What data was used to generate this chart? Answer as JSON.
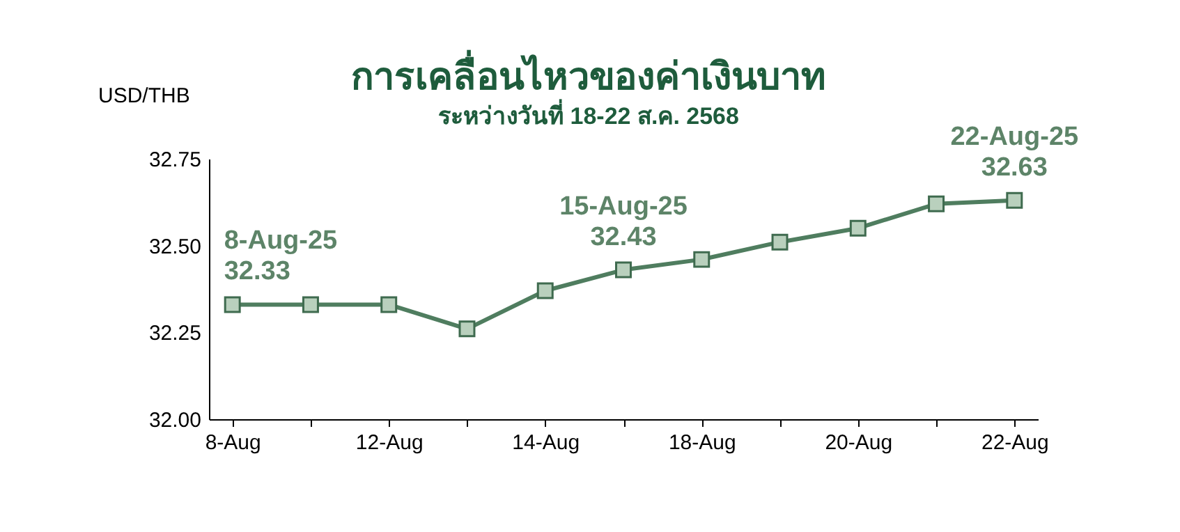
{
  "chart_data": {
    "type": "line",
    "title": "การเคลื่อนไหวของค่าเงินบาท",
    "subtitle": "ระหว่างวันที่ 18-22 ส.ค. 2568",
    "ylabel": "USD/THB",
    "categories": [
      "8-Aug",
      null,
      "12-Aug",
      null,
      "14-Aug",
      null,
      "18-Aug",
      null,
      "20-Aug",
      null,
      "22-Aug"
    ],
    "series": [
      {
        "color": "#4f7d5f",
        "values": [
          32.33,
          32.33,
          32.33,
          32.26,
          32.37,
          32.43,
          32.46,
          32.51,
          32.55,
          32.62,
          32.63
        ],
        "value_labels": [
          "8-Aug-25\n32.33",
          null,
          null,
          null,
          null,
          "15-Aug-25\n32.43",
          null,
          null,
          null,
          null,
          "22-Aug-25\n32.63"
        ]
      }
    ],
    "ylim": [
      32.0,
      32.75
    ],
    "yticks": [
      {
        "value": 32,
        "label": "32.00"
      },
      {
        "value": 32.25,
        "label": "32.25"
      },
      {
        "value": 32.5,
        "label": "32.50"
      },
      {
        "value": 32.75,
        "label": "32.75"
      }
    ],
    "grid": false,
    "marker": "square",
    "line_style": "solid"
  }
}
